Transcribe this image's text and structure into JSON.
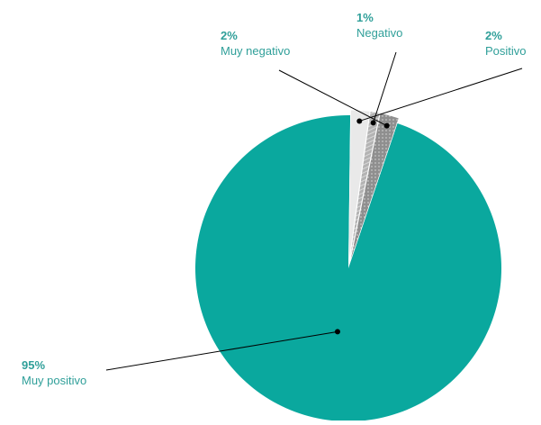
{
  "chart_data": {
    "type": "pie",
    "title": "",
    "slices": [
      {
        "label": "Muy positivo",
        "value": 95,
        "value_label": "95%",
        "color": "#0aa89e"
      },
      {
        "label": "Positivo",
        "value": 2,
        "value_label": "2%",
        "color": "#e9e9e9"
      },
      {
        "label": "Negativo",
        "value": 1,
        "value_label": "1%",
        "color": "#b3b3b3"
      },
      {
        "label": "Muy negativo",
        "value": 2,
        "value_label": "2%",
        "color": "#8f8f8f"
      }
    ],
    "accent_color": "#14a39a",
    "label_text_color": "#2f9f99",
    "legend": "none"
  }
}
